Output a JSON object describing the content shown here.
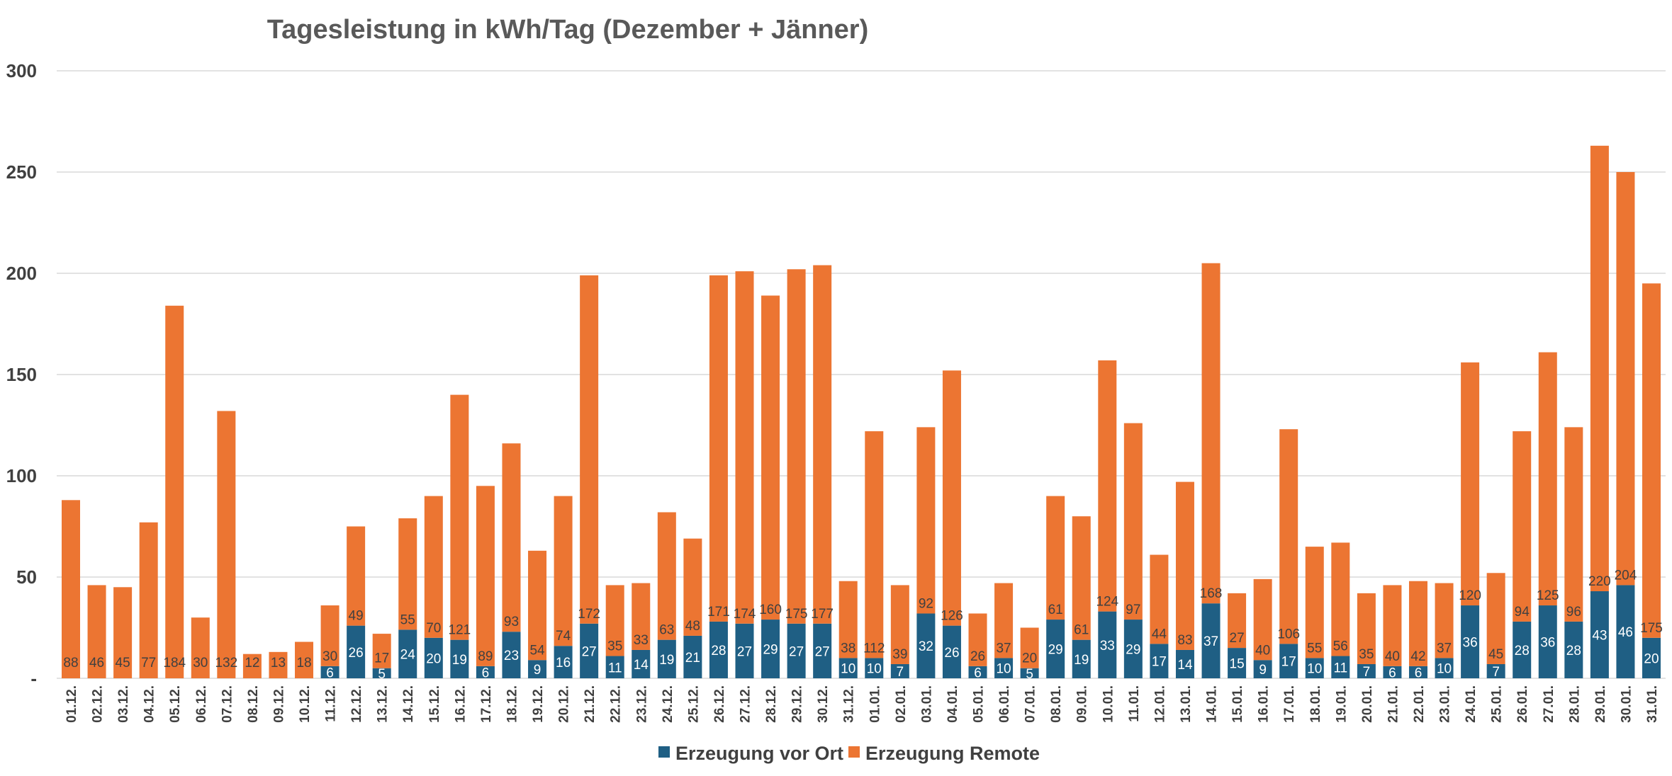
{
  "colors": {
    "local": "#1f5f84",
    "remote": "#ec7532",
    "grid": "#d9d9d9",
    "text": "#404040",
    "title": "#595959"
  },
  "chart_data": {
    "type": "bar",
    "stacked": true,
    "title": "Tagesleistung in kWh/Tag (Dezember + Jänner)",
    "xlabel": "",
    "ylabel": "",
    "ylim": [
      0,
      300
    ],
    "yticks": [
      0,
      50,
      100,
      150,
      200,
      250,
      300
    ],
    "ytick_labels": [
      "-",
      "50",
      "100",
      "150",
      "200",
      "250",
      "300"
    ],
    "grid": true,
    "legend_position": "bottom",
    "categories": [
      "01.12.",
      "02.12.",
      "03.12.",
      "04.12.",
      "05.12.",
      "06.12.",
      "07.12.",
      "08.12.",
      "09.12.",
      "10.12.",
      "11.12.",
      "12.12.",
      "13.12.",
      "14.12.",
      "15.12.",
      "16.12.",
      "17.12.",
      "18.12.",
      "19.12.",
      "20.12.",
      "21.12.",
      "22.12.",
      "23.12.",
      "24.12.",
      "25.12.",
      "26.12.",
      "27.12.",
      "28.12.",
      "29.12.",
      "30.12.",
      "31.12.",
      "01.01.",
      "02.01.",
      "03.01.",
      "04.01.",
      "05.01.",
      "06.01.",
      "07.01.",
      "08.01.",
      "09.01.",
      "10.01.",
      "11.01.",
      "12.01.",
      "13.01.",
      "14.01.",
      "15.01.",
      "16.01.",
      "17.01.",
      "18.01.",
      "19.01.",
      "20.01.",
      "21.01.",
      "22.01.",
      "23.01.",
      "24.01.",
      "25.01.",
      "26.01.",
      "27.01.",
      "28.01.",
      "29.01.",
      "30.01.",
      "31.01."
    ],
    "series": [
      {
        "name": "Erzeugung vor Ort",
        "color": "#1f5f84",
        "values": [
          0,
          0,
          0,
          0,
          0,
          0,
          0,
          0,
          0,
          0,
          6,
          26,
          5,
          24,
          20,
          19,
          6,
          23,
          9,
          16,
          27,
          11,
          14,
          19,
          21,
          28,
          27,
          29,
          27,
          27,
          10,
          10,
          7,
          32,
          26,
          6,
          10,
          5,
          29,
          19,
          33,
          29,
          17,
          14,
          37,
          15,
          9,
          17,
          10,
          11,
          7,
          6,
          6,
          10,
          36,
          7,
          28,
          36,
          28,
          43,
          46,
          20
        ]
      },
      {
        "name": "Erzeugung Remote",
        "color": "#ec7532",
        "values": [
          88,
          46,
          45,
          77,
          184,
          30,
          132,
          12,
          13,
          18,
          30,
          49,
          17,
          55,
          70,
          121,
          89,
          93,
          54,
          74,
          172,
          35,
          33,
          63,
          48,
          171,
          174,
          160,
          175,
          177,
          38,
          112,
          39,
          92,
          126,
          26,
          37,
          20,
          61,
          61,
          124,
          97,
          44,
          83,
          168,
          27,
          40,
          106,
          55,
          56,
          35,
          40,
          42,
          37,
          120,
          45,
          94,
          125,
          96,
          220,
          204,
          175
        ]
      }
    ]
  }
}
